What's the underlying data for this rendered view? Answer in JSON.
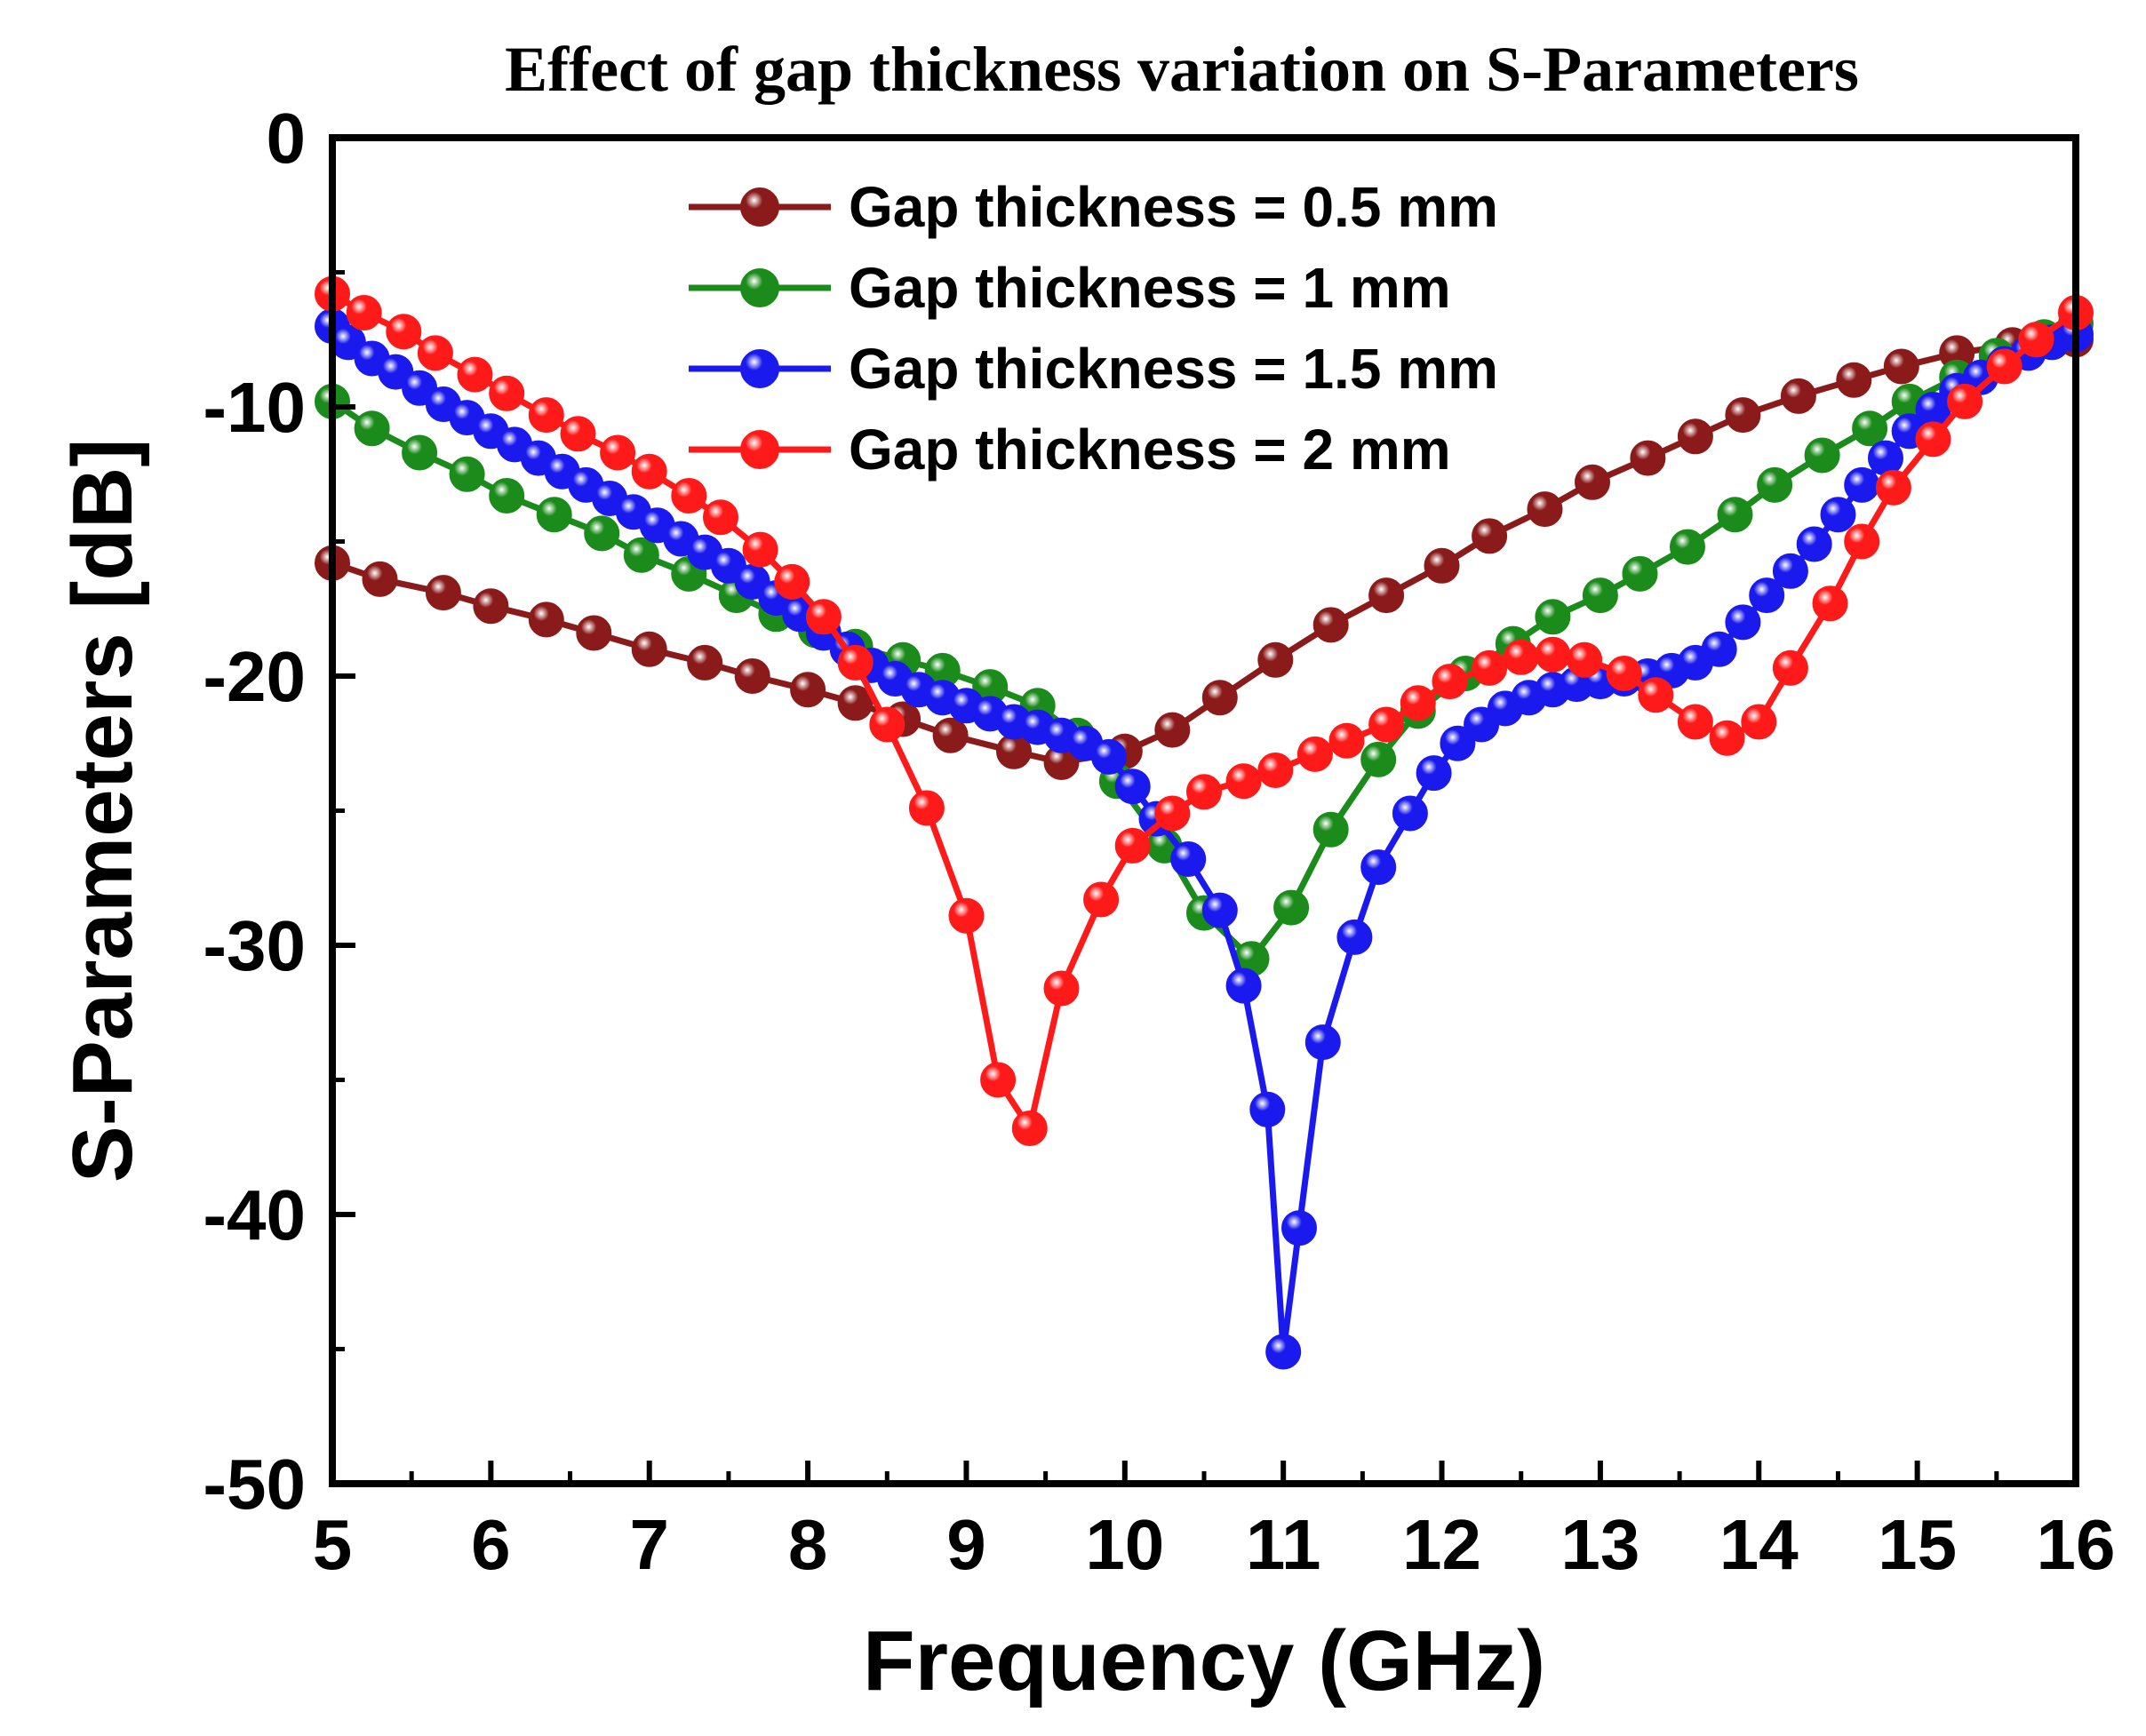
{
  "chart_data": {
    "type": "line",
    "title": "Effect of gap thickness variation on S-Parameters",
    "xlabel": "Frequency (GHz)",
    "ylabel": "S-Parameters [dB]",
    "xlim": [
      5,
      16
    ],
    "ylim": [
      -50,
      0
    ],
    "xticks": [
      5,
      6,
      7,
      8,
      9,
      10,
      11,
      12,
      13,
      14,
      15,
      16
    ],
    "yticks": [
      0,
      -10,
      -20,
      -30,
      -40,
      -50
    ],
    "legend_position": "top-center",
    "grid": false,
    "series": [
      {
        "name": "Gap thickness = 0.5 mm",
        "color": "#8b1a1a",
        "x": [
          5.0,
          5.3,
          5.7,
          6.0,
          6.35,
          6.65,
          7.0,
          7.35,
          7.65,
          8.0,
          8.3,
          8.6,
          8.9,
          9.3,
          9.6,
          10.0,
          10.3,
          10.6,
          10.95,
          11.3,
          11.65,
          12.0,
          12.3,
          12.65,
          12.95,
          13.3,
          13.6,
          13.9,
          14.25,
          14.6,
          14.9,
          15.25,
          15.6,
          16.0
        ],
        "y": [
          -15.8,
          -16.4,
          -16.9,
          -17.4,
          -17.9,
          -18.4,
          -19.0,
          -19.5,
          -20.0,
          -20.5,
          -21.0,
          -21.6,
          -22.2,
          -22.8,
          -23.2,
          -22.8,
          -22.0,
          -20.8,
          -19.4,
          -18.1,
          -17.0,
          -15.9,
          -14.8,
          -13.8,
          -12.8,
          -11.9,
          -11.1,
          -10.3,
          -9.6,
          -9.0,
          -8.5,
          -8.0,
          -7.7,
          -7.5
        ]
      },
      {
        "name": "Gap thickness = 1 mm",
        "color": "#1b8c1b",
        "x": [
          5.0,
          5.25,
          5.55,
          5.85,
          6.1,
          6.4,
          6.7,
          6.95,
          7.25,
          7.55,
          7.8,
          8.05,
          8.3,
          8.6,
          8.85,
          9.15,
          9.45,
          9.7,
          9.95,
          10.25,
          10.5,
          10.8,
          11.05,
          11.3,
          11.6,
          11.85,
          12.15,
          12.45,
          12.7,
          13.0,
          13.25,
          13.55,
          13.85,
          14.1,
          14.4,
          14.7,
          14.95,
          15.25,
          15.5,
          15.8,
          16.0
        ],
        "y": [
          -9.8,
          -10.8,
          -11.7,
          -12.5,
          -13.3,
          -14.0,
          -14.7,
          -15.5,
          -16.2,
          -17.0,
          -17.7,
          -18.3,
          -18.9,
          -19.4,
          -19.8,
          -20.4,
          -21.1,
          -22.2,
          -23.9,
          -26.3,
          -28.8,
          -30.5,
          -28.6,
          -25.7,
          -23.1,
          -21.3,
          -19.9,
          -18.8,
          -17.8,
          -17.0,
          -16.2,
          -15.2,
          -14.0,
          -12.9,
          -11.8,
          -10.8,
          -9.8,
          -8.9,
          -8.1,
          -7.4,
          -6.9
        ]
      },
      {
        "name": "Gap thickness = 1.5 mm",
        "color": "#1a1aee",
        "x": [
          5.0,
          5.1,
          5.25,
          5.4,
          5.55,
          5.7,
          5.85,
          6.0,
          6.15,
          6.3,
          6.45,
          6.6,
          6.75,
          6.9,
          7.05,
          7.2,
          7.35,
          7.5,
          7.65,
          7.8,
          7.95,
          8.1,
          8.25,
          8.4,
          8.55,
          8.7,
          8.85,
          9.0,
          9.15,
          9.3,
          9.45,
          9.6,
          9.75,
          9.9,
          10.05,
          10.2,
          10.4,
          10.6,
          10.75,
          10.9,
          11.0,
          11.1,
          11.25,
          11.45,
          11.6,
          11.8,
          11.95,
          12.1,
          12.25,
          12.4,
          12.55,
          12.7,
          12.85,
          13.0,
          13.15,
          13.3,
          13.45,
          13.6,
          13.75,
          13.9,
          14.05,
          14.2,
          14.35,
          14.5,
          14.65,
          14.8,
          14.95,
          15.1,
          15.25,
          15.4,
          15.55,
          15.7,
          15.85,
          16.0
        ],
        "y": [
          -7.0,
          -7.6,
          -8.2,
          -8.7,
          -9.3,
          -9.9,
          -10.4,
          -10.9,
          -11.4,
          -11.9,
          -12.4,
          -12.9,
          -13.4,
          -13.9,
          -14.4,
          -14.9,
          -15.4,
          -15.9,
          -16.5,
          -17.1,
          -17.7,
          -18.4,
          -19.0,
          -19.6,
          -20.1,
          -20.5,
          -20.8,
          -21.1,
          -21.4,
          -21.7,
          -21.9,
          -22.2,
          -22.5,
          -23.0,
          -24.1,
          -25.3,
          -26.8,
          -28.7,
          -31.5,
          -36.1,
          -45.1,
          -40.5,
          -33.6,
          -29.7,
          -27.1,
          -25.1,
          -23.6,
          -22.5,
          -21.8,
          -21.2,
          -20.8,
          -20.5,
          -20.3,
          -20.2,
          -20.1,
          -20.0,
          -19.8,
          -19.5,
          -19.0,
          -18.0,
          -17.0,
          -16.1,
          -15.1,
          -14.0,
          -12.9,
          -11.9,
          -10.9,
          -10.1,
          -9.4,
          -8.9,
          -8.4,
          -8.0,
          -7.6,
          -7.3
        ]
      },
      {
        "name": "Gap thickness = 2 mm",
        "color": "#ff1a1a",
        "x": [
          5.0,
          5.2,
          5.45,
          5.65,
          5.9,
          6.1,
          6.35,
          6.55,
          6.8,
          7.0,
          7.25,
          7.45,
          7.7,
          7.9,
          8.1,
          8.3,
          8.5,
          8.75,
          9.0,
          9.2,
          9.4,
          9.6,
          9.85,
          10.05,
          10.3,
          10.5,
          10.75,
          10.95,
          11.2,
          11.4,
          11.65,
          11.85,
          12.05,
          12.3,
          12.5,
          12.7,
          12.9,
          13.15,
          13.35,
          13.6,
          13.8,
          14.0,
          14.2,
          14.45,
          14.65,
          14.85,
          15.1,
          15.3,
          15.55,
          15.75,
          16.0
        ],
        "y": [
          -5.8,
          -6.5,
          -7.2,
          -8.0,
          -8.8,
          -9.5,
          -10.3,
          -11.0,
          -11.7,
          -12.4,
          -13.3,
          -14.1,
          -15.3,
          -16.5,
          -17.8,
          -19.5,
          -21.8,
          -24.9,
          -28.9,
          -35.0,
          -36.8,
          -31.6,
          -28.3,
          -26.3,
          -25.1,
          -24.3,
          -23.9,
          -23.5,
          -22.9,
          -22.4,
          -21.8,
          -21.0,
          -20.2,
          -19.7,
          -19.3,
          -19.2,
          -19.4,
          -19.9,
          -20.7,
          -21.7,
          -22.3,
          -21.7,
          -19.7,
          -17.3,
          -15.0,
          -13.0,
          -11.2,
          -9.8,
          -8.5,
          -7.5,
          -6.5
        ]
      }
    ]
  }
}
